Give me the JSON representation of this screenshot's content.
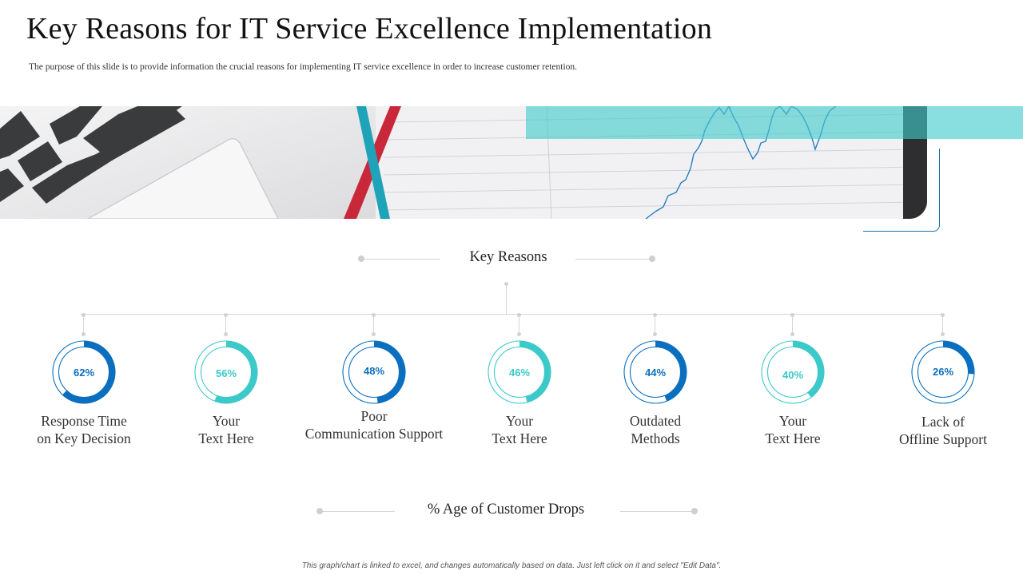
{
  "slide": {
    "title": "Key Reasons for IT Service Excellence Implementation",
    "subtitle": "The purpose of this slide is to provide information the crucial reasons for implementing IT service excellence in order to increase customer retention.",
    "section_top": "Key Reasons",
    "section_bottom": "%  Age of Customer Drops",
    "footer": "This graph/chart is linked to excel, and changes automatically based on data. Just left click on it and select \"Edit Data\"."
  },
  "colors": {
    "dark_blue": "#0b6fbf",
    "teal": "#3cc9c9",
    "track": "#ffffff"
  },
  "chart_data": {
    "type": "donut",
    "title": "%  Age of Customer Drops",
    "categories": [
      "Response Time\non Key Decision",
      "Your\nText Here",
      "Poor\nCommunication Support",
      "Your\nText Here",
      "Outdated\nMethods",
      "Your\nText Here",
      "Lack of\nOffline Support"
    ],
    "values": [
      62,
      56,
      48,
      46,
      44,
      40,
      26
    ],
    "labels": [
      "62%",
      "56%",
      "48%",
      "46%",
      "44%",
      "40%",
      "26%"
    ],
    "colors": [
      "#0b6fbf",
      "#3cc9c9",
      "#0b6fbf",
      "#3cc9c9",
      "#0b6fbf",
      "#3cc9c9",
      "#0b6fbf"
    ]
  }
}
